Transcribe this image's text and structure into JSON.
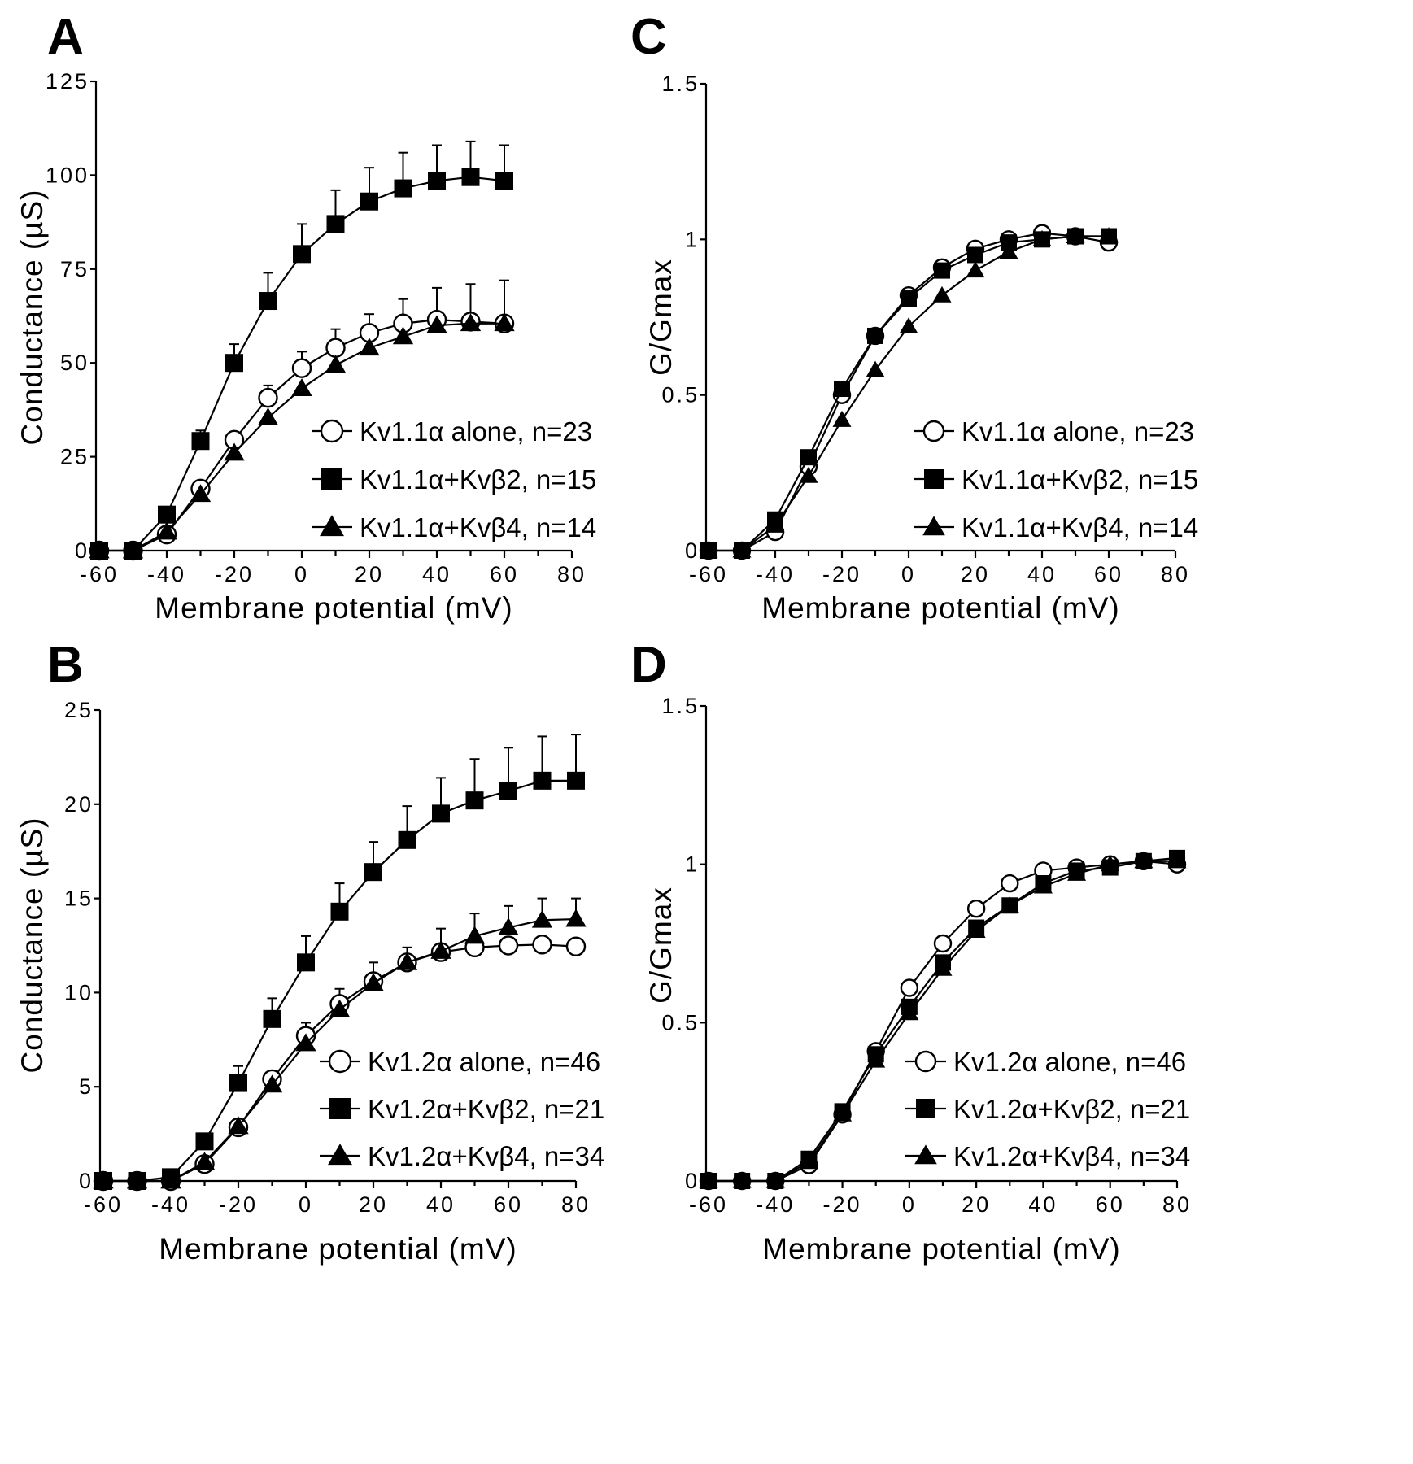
{
  "chart_data": [
    {
      "panel": "A",
      "type": "line",
      "xlabel": "Membrane potential (mV)",
      "ylabel": "Conductance (µS)",
      "xlim": [
        -60,
        80
      ],
      "ylim": [
        0,
        125
      ],
      "xticks": [
        -60,
        -40,
        -20,
        0,
        20,
        40,
        60,
        80
      ],
      "yticks": [
        0,
        25,
        50,
        75,
        100,
        125
      ],
      "legend_position": "lower-right",
      "x": [
        -60,
        -50,
        -40,
        -30,
        -20,
        -10,
        0,
        10,
        20,
        30,
        40,
        50,
        60
      ],
      "series": [
        {
          "name": "Kv1.1α alone, n=23",
          "marker": "open-circle",
          "values": [
            0,
            0,
            4.3,
            16.5,
            29.5,
            40.7,
            48.6,
            54,
            58,
            60.5,
            61.5,
            61,
            60.5
          ],
          "error_upper": [
            null,
            null,
            null,
            null,
            31,
            44,
            53,
            59,
            63,
            67,
            70,
            71,
            72
          ]
        },
        {
          "name": "Kv1.1α+Kvβ2, n=15",
          "marker": "filled-square",
          "values": [
            0,
            0,
            9.6,
            29.2,
            50,
            66.5,
            79,
            87,
            93,
            96.5,
            98.5,
            99.5,
            98.5
          ],
          "error_upper": [
            null,
            null,
            null,
            32,
            55,
            74,
            87,
            96,
            102,
            106,
            108,
            109,
            108
          ]
        },
        {
          "name": "Kv1.1α+Kvβ4, n=14",
          "marker": "filled-triangle",
          "values": [
            0,
            0,
            5,
            15,
            26,
            35.4,
            43.2,
            49.4,
            54,
            57,
            60,
            60.5,
            60.5
          ],
          "error_upper": [
            null,
            null,
            null,
            null,
            null,
            null,
            null,
            null,
            null,
            null,
            null,
            null,
            null
          ]
        }
      ]
    },
    {
      "panel": "B",
      "type": "line",
      "xlabel": "Membrane potential (mV)",
      "ylabel": "Conductance (µS)",
      "xlim": [
        -60,
        80
      ],
      "ylim": [
        0,
        25
      ],
      "xticks": [
        -60,
        -40,
        -20,
        0,
        20,
        40,
        60,
        80
      ],
      "yticks": [
        0,
        5,
        10,
        15,
        20,
        25
      ],
      "legend_position": "lower-right",
      "x": [
        -60,
        -50,
        -40,
        -30,
        -20,
        -10,
        0,
        10,
        20,
        30,
        40,
        50,
        60,
        70,
        80
      ],
      "series": [
        {
          "name": "Kv1.2α alone, n=46",
          "marker": "open-circle",
          "values": [
            0,
            0,
            0,
            0.9,
            2.85,
            5.4,
            7.7,
            9.4,
            10.6,
            11.6,
            12.15,
            12.4,
            12.5,
            12.55,
            12.45
          ],
          "error_upper": [
            null,
            null,
            null,
            null,
            null,
            null,
            8.4,
            10.2,
            11.6,
            12.4,
            null,
            null,
            null,
            null,
            null
          ]
        },
        {
          "name": "Kv1.2α+Kvβ2, n=21",
          "marker": "filled-square",
          "values": [
            0,
            0,
            0.2,
            2.1,
            5.2,
            8.6,
            11.6,
            14.3,
            16.4,
            18.1,
            19.5,
            20.2,
            20.7,
            21.25,
            21.25
          ],
          "error_upper": [
            null,
            null,
            null,
            2.3,
            6.1,
            9.7,
            13.0,
            15.8,
            18.0,
            19.9,
            21.4,
            22.4,
            23.0,
            23.6,
            23.7
          ]
        },
        {
          "name": "Kv1.2α+Kvβ4, n=34",
          "marker": "filled-triangle",
          "values": [
            0,
            0,
            0,
            1.0,
            2.9,
            5.1,
            7.3,
            9.1,
            10.5,
            11.6,
            12.2,
            13.0,
            13.45,
            13.85,
            13.9
          ],
          "error_upper": [
            null,
            null,
            null,
            null,
            null,
            null,
            null,
            null,
            null,
            null,
            13.4,
            14.2,
            14.6,
            15.0,
            15.0
          ]
        }
      ]
    },
    {
      "panel": "C",
      "type": "line",
      "xlabel": "Membrane potential (mV)",
      "ylabel": "G/Gmax",
      "xlim": [
        -60,
        80
      ],
      "ylim": [
        0,
        1.5
      ],
      "xticks": [
        -60,
        -40,
        -20,
        0,
        20,
        40,
        60,
        80
      ],
      "yticks": [
        0,
        0.5,
        1,
        1.5
      ],
      "legend_position": "lower-right",
      "x": [
        -60,
        -50,
        -40,
        -30,
        -20,
        -10,
        0,
        10,
        20,
        30,
        40,
        50,
        60
      ],
      "series": [
        {
          "name": "Kv1.1α alone, n=23",
          "marker": "open-circle",
          "values": [
            0,
            0,
            0.06,
            0.27,
            0.5,
            0.69,
            0.82,
            0.91,
            0.97,
            1.0,
            1.02,
            1.01,
            0.99
          ]
        },
        {
          "name": "Kv1.1α+Kvβ2, n=15",
          "marker": "filled-square",
          "values": [
            0,
            0,
            0.1,
            0.3,
            0.52,
            0.69,
            0.81,
            0.9,
            0.95,
            0.99,
            1.0,
            1.01,
            1.01
          ]
        },
        {
          "name": "Kv1.1α+Kvβ4, n=14",
          "marker": "filled-triangle",
          "values": [
            0,
            0,
            0.08,
            0.24,
            0.42,
            0.58,
            0.72,
            0.82,
            0.9,
            0.96,
            1.0,
            1.01,
            1.01
          ]
        }
      ]
    },
    {
      "panel": "D",
      "type": "line",
      "xlabel": "Membrane potential (mV)",
      "ylabel": "G/Gmax",
      "xlim": [
        -60,
        80
      ],
      "ylim": [
        0,
        1.5
      ],
      "xticks": [
        -60,
        -40,
        -20,
        0,
        20,
        40,
        60,
        80
      ],
      "yticks": [
        0,
        0.5,
        1,
        1.5
      ],
      "legend_position": "lower-right",
      "x": [
        -60,
        -50,
        -40,
        -30,
        -20,
        -10,
        0,
        10,
        20,
        30,
        40,
        50,
        60,
        70,
        80
      ],
      "series": [
        {
          "name": "Kv1.2α alone, n=46",
          "marker": "open-circle",
          "values": [
            0,
            0,
            0,
            0.05,
            0.21,
            0.41,
            0.61,
            0.75,
            0.86,
            0.94,
            0.98,
            0.99,
            1.0,
            1.01,
            1.0
          ]
        },
        {
          "name": "Kv1.2α+Kvβ2, n=21",
          "marker": "filled-square",
          "values": [
            0,
            0,
            0,
            0.07,
            0.22,
            0.4,
            0.55,
            0.69,
            0.8,
            0.87,
            0.94,
            0.98,
            0.99,
            1.01,
            1.02
          ]
        },
        {
          "name": "Kv1.2α+Kvβ4, n=34",
          "marker": "filled-triangle",
          "values": [
            0,
            0,
            0,
            0.06,
            0.21,
            0.38,
            0.53,
            0.67,
            0.79,
            0.87,
            0.93,
            0.97,
            1.0,
            1.01,
            1.01
          ]
        }
      ]
    }
  ],
  "labels": {
    "A": "A",
    "B": "B",
    "C": "C",
    "D": "D"
  },
  "tick_text": {
    "A": {
      "x": [
        "-60",
        "-40",
        "-20",
        "0",
        "20",
        "40",
        "60",
        "80"
      ],
      "y": [
        "0",
        "25",
        "50",
        "75",
        "100",
        "125"
      ]
    },
    "B": {
      "x": [
        "-60",
        "-40",
        "-20",
        "0",
        "20",
        "40",
        "60",
        "80"
      ],
      "y": [
        "0",
        "5",
        "10",
        "15",
        "20",
        "25"
      ]
    },
    "C": {
      "x": [
        "-60",
        "-40",
        "-20",
        "0",
        "20",
        "40",
        "60",
        "80"
      ],
      "y": [
        "0",
        "0.5",
        "1",
        "1.5"
      ]
    },
    "D": {
      "x": [
        "-60",
        "-40",
        "-20",
        "0",
        "20",
        "40",
        "60",
        "80"
      ],
      "y": [
        "0",
        "0.5",
        "1",
        "1.5"
      ]
    }
  }
}
